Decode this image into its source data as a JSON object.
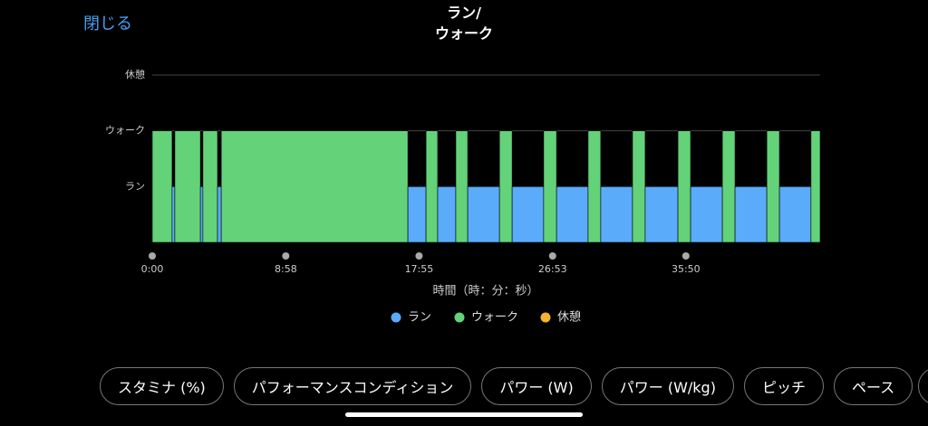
{
  "header": {
    "close": "閉じる"
  },
  "chart_data": {
    "type": "step",
    "title": [
      "ラン/",
      "ウォーク"
    ],
    "x_label": "時間（時：分：秒）",
    "x": [
      0,
      80,
      91,
      194,
      204,
      263,
      278,
      1030,
      1103,
      1150,
      1223,
      1271,
      1399,
      1450,
      1577,
      1629,
      1756,
      1807,
      1935,
      1986,
      2118,
      2169,
      2297,
      2348,
      2476,
      2527,
      2654
    ],
    "values": [
      2,
      1,
      2,
      1,
      2,
      1,
      2,
      1,
      2,
      1,
      2,
      1,
      2,
      1,
      2,
      1,
      2,
      1,
      2,
      1,
      2,
      1,
      2,
      1,
      2,
      1,
      2
    ],
    "xlim": [
      0,
      2691
    ],
    "ylim": [
      0,
      3
    ],
    "xticks": [
      {
        "value": 0,
        "label": "0:00"
      },
      {
        "value": 538,
        "label": "8:58"
      },
      {
        "value": 1075,
        "label": "17:55"
      },
      {
        "value": 1613,
        "label": "26:53"
      },
      {
        "value": 2150,
        "label": "35:50"
      }
    ],
    "yticks": [
      {
        "value": 1,
        "label": "ラン"
      },
      {
        "value": 2,
        "label": "ウォーク"
      },
      {
        "value": 3,
        "label": "休憩"
      }
    ],
    "grid": true,
    "legend": [
      {
        "name": "ラン",
        "color": "#5aabf9"
      },
      {
        "name": "ウォーク",
        "color": "#63d279"
      },
      {
        "name": "休憩",
        "color": "#f5b32e"
      }
    ]
  },
  "tabs": [
    "スタミナ (%)",
    "パフォーマンスコンディション",
    "パワー (W)",
    "パワー (W/kg)",
    "ピッチ",
    "ペース"
  ]
}
